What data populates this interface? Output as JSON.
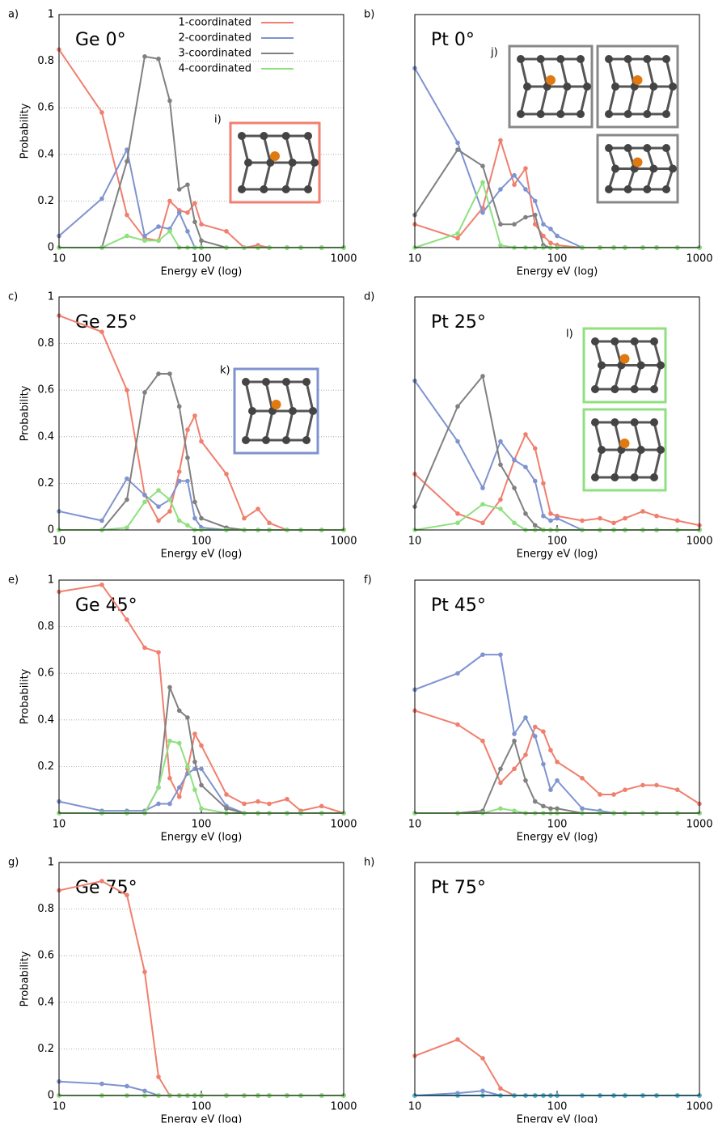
{
  "chart_data": [
    {
      "type": "line",
      "panel_label": "a)",
      "title": "Ge 0°",
      "xlabel": "Energy eV (log)",
      "ylabel": "Probability",
      "xscale": "log",
      "legend": "upper center",
      "inset_label": "i)",
      "x": [
        10,
        20,
        30,
        40,
        50,
        60,
        70,
        80,
        90,
        100,
        150,
        200,
        250,
        300,
        400,
        500,
        700,
        1000
      ],
      "xlim": [
        10,
        1000
      ],
      "xticks": [
        10,
        100,
        1000
      ],
      "ylim": [
        0,
        1
      ],
      "yticks": [
        0,
        0.2,
        0.4,
        0.6,
        0.8,
        1
      ],
      "grid": true,
      "series": [
        {
          "name": "1-coordinated",
          "color": "#f07f6e",
          "values": [
            0.85,
            0.58,
            0.14,
            0.04,
            0.03,
            0.2,
            0.16,
            0.15,
            0.19,
            0.1,
            0.07,
            0,
            0.01,
            0,
            0,
            0,
            0,
            0
          ]
        },
        {
          "name": "2-coordinated",
          "color": "#7f93cf",
          "values": [
            0.05,
            0.21,
            0.42,
            0.05,
            0.09,
            0.08,
            0.15,
            0.07,
            0,
            0,
            0,
            0,
            0,
            0,
            0,
            0,
            0,
            0
          ]
        },
        {
          "name": "3-coordinated",
          "color": "#808080",
          "values": [
            0,
            0,
            0.37,
            0.82,
            0.81,
            0.63,
            0.25,
            0.27,
            0.11,
            0.03,
            0,
            0,
            0,
            0,
            0,
            0,
            0,
            0
          ]
        },
        {
          "name": "4-coordinated",
          "color": "#90e080",
          "values": [
            0,
            0,
            0.05,
            0.03,
            0.03,
            0.07,
            0,
            0,
            0,
            0,
            0,
            0,
            0,
            0,
            0,
            0,
            0,
            0
          ]
        }
      ]
    },
    {
      "type": "line",
      "panel_label": "b)",
      "title": "Pt 0°",
      "xlabel": "Energy eV (log)",
      "xscale": "log",
      "inset_label": "j)",
      "x": [
        10,
        20,
        30,
        40,
        50,
        60,
        70,
        80,
        90,
        100,
        150,
        200,
        250,
        300,
        400,
        500,
        700,
        1000
      ],
      "xlim": [
        10,
        1000
      ],
      "xticks": [
        10,
        100,
        1000
      ],
      "ylim": [
        0,
        1
      ],
      "series": [
        {
          "name": "1-coordinated",
          "color": "#f07f6e",
          "values": [
            0.1,
            0.04,
            0.17,
            0.46,
            0.27,
            0.34,
            0.1,
            0.05,
            0.02,
            0.01,
            0,
            0,
            0,
            0,
            0,
            0,
            0,
            0
          ]
        },
        {
          "name": "2-coordinated",
          "color": "#7f93cf",
          "values": [
            0.77,
            0.45,
            0.15,
            0.25,
            0.31,
            0.25,
            0.2,
            0.1,
            0.08,
            0.05,
            0,
            0,
            0,
            0,
            0,
            0,
            0,
            0
          ]
        },
        {
          "name": "3-coordinated",
          "color": "#808080",
          "values": [
            0.14,
            0.42,
            0.35,
            0.1,
            0.1,
            0.13,
            0.14,
            0.01,
            0,
            0,
            0,
            0,
            0,
            0,
            0,
            0,
            0,
            0
          ]
        },
        {
          "name": "4-coordinated",
          "color": "#90e080",
          "values": [
            0,
            0.06,
            0.28,
            0.01,
            0,
            0,
            0,
            0,
            0,
            0,
            0,
            0,
            0,
            0,
            0,
            0,
            0,
            0
          ]
        }
      ]
    },
    {
      "type": "line",
      "panel_label": "c)",
      "title": "Ge 25°",
      "xlabel": "Energy eV (log)",
      "ylabel": "Probability",
      "xscale": "log",
      "inset_label": "k)",
      "x": [
        10,
        20,
        30,
        40,
        50,
        60,
        70,
        80,
        90,
        100,
        150,
        200,
        250,
        300,
        400,
        500,
        700,
        1000
      ],
      "xlim": [
        10,
        1000
      ],
      "xticks": [
        10,
        100,
        1000
      ],
      "ylim": [
        0,
        1
      ],
      "yticks": [
        0,
        0.2,
        0.4,
        0.6,
        0.8,
        1
      ],
      "grid": true,
      "series": [
        {
          "name": "1-coordinated",
          "color": "#f07f6e",
          "values": [
            0.92,
            0.85,
            0.6,
            0.15,
            0.04,
            0.08,
            0.25,
            0.43,
            0.49,
            0.38,
            0.24,
            0.05,
            0.09,
            0.03,
            0,
            0,
            0,
            0
          ]
        },
        {
          "name": "2-coordinated",
          "color": "#7f93cf",
          "values": [
            0.08,
            0.04,
            0.22,
            0.15,
            0.1,
            0.13,
            0.21,
            0.21,
            0.05,
            0.01,
            0,
            0,
            0,
            0,
            0,
            0,
            0,
            0
          ]
        },
        {
          "name": "3-coordinated",
          "color": "#808080",
          "values": [
            0,
            0,
            0.13,
            0.59,
            0.67,
            0.67,
            0.53,
            0.31,
            0.12,
            0.05,
            0.01,
            0,
            0,
            0,
            0,
            0,
            0,
            0
          ]
        },
        {
          "name": "4-coordinated",
          "color": "#90e080",
          "values": [
            0,
            0,
            0.01,
            0.12,
            0.17,
            0.13,
            0.04,
            0.02,
            0,
            0,
            0,
            0,
            0,
            0,
            0,
            0,
            0,
            0
          ]
        }
      ]
    },
    {
      "type": "line",
      "panel_label": "d)",
      "title": "Pt 25°",
      "xlabel": "Energy eV (log)",
      "xscale": "log",
      "inset_label": "l)",
      "x": [
        10,
        20,
        30,
        40,
        50,
        60,
        70,
        80,
        90,
        100,
        150,
        200,
        250,
        300,
        400,
        500,
        700,
        1000
      ],
      "xlim": [
        10,
        1000
      ],
      "xticks": [
        10,
        100,
        1000
      ],
      "ylim": [
        0,
        1
      ],
      "series": [
        {
          "name": "1-coordinated",
          "color": "#f07f6e",
          "values": [
            0.24,
            0.07,
            0.03,
            0.13,
            0.3,
            0.41,
            0.35,
            0.2,
            0.07,
            0.06,
            0.04,
            0.05,
            0.03,
            0.05,
            0.08,
            0.06,
            0.04,
            0.02
          ]
        },
        {
          "name": "2-coordinated",
          "color": "#7f93cf",
          "values": [
            0.64,
            0.38,
            0.18,
            0.38,
            0.3,
            0.27,
            0.21,
            0.06,
            0.04,
            0.05,
            0,
            0,
            0,
            0,
            0,
            0,
            0,
            0
          ]
        },
        {
          "name": "3-coordinated",
          "color": "#808080",
          "values": [
            0.1,
            0.53,
            0.66,
            0.28,
            0.18,
            0.07,
            0.02,
            0,
            0,
            0,
            0,
            0,
            0,
            0,
            0,
            0,
            0,
            0
          ]
        },
        {
          "name": "4-coordinated",
          "color": "#90e080",
          "values": [
            0,
            0.03,
            0.11,
            0.09,
            0.03,
            0,
            0,
            0,
            0,
            0,
            0,
            0,
            0,
            0,
            0,
            0,
            0,
            0
          ]
        }
      ]
    },
    {
      "type": "line",
      "panel_label": "e)",
      "title": "Ge 45°",
      "xlabel": "Energy eV (log)",
      "ylabel": "Probability",
      "xscale": "log",
      "x": [
        10,
        20,
        30,
        40,
        50,
        60,
        70,
        80,
        90,
        100,
        150,
        200,
        250,
        300,
        400,
        500,
        700,
        1000
      ],
      "xlim": [
        10,
        1000
      ],
      "xticks": [
        10,
        100,
        1000
      ],
      "ylim": [
        0,
        1
      ],
      "yticks": [
        0.2,
        0.4,
        0.6,
        0.8,
        1
      ],
      "grid": true,
      "series": [
        {
          "name": "1-coordinated",
          "color": "#f07f6e",
          "values": [
            0.95,
            0.98,
            0.83,
            0.71,
            0.69,
            0.15,
            0.07,
            0.19,
            0.34,
            0.29,
            0.08,
            0.04,
            0.05,
            0.04,
            0.06,
            0.01,
            0.03,
            0
          ]
        },
        {
          "name": "2-coordinated",
          "color": "#7f93cf",
          "values": [
            0.05,
            0.01,
            0.01,
            0.01,
            0.04,
            0.04,
            0.11,
            0.17,
            0.19,
            0.19,
            0.03,
            0,
            0,
            0,
            0,
            0,
            0,
            0
          ]
        },
        {
          "name": "3-coordinated",
          "color": "#808080",
          "values": [
            0,
            0,
            0,
            0,
            0.11,
            0.54,
            0.44,
            0.41,
            0.22,
            0.12,
            0.02,
            0,
            0,
            0,
            0,
            0,
            0,
            0
          ]
        },
        {
          "name": "4-coordinated",
          "color": "#90e080",
          "values": [
            0,
            0,
            0,
            0,
            0.11,
            0.31,
            0.3,
            0.2,
            0.1,
            0.02,
            0,
            0,
            0,
            0,
            0,
            0,
            0,
            0
          ]
        }
      ]
    },
    {
      "type": "line",
      "panel_label": "f)",
      "title": "Pt 45°",
      "xlabel": "Energy eV (log)",
      "xscale": "log",
      "x": [
        10,
        20,
        30,
        40,
        50,
        60,
        70,
        80,
        90,
        100,
        150,
        200,
        250,
        300,
        400,
        500,
        700,
        1000
      ],
      "xlim": [
        10,
        1000
      ],
      "xticks": [
        10,
        100,
        1000
      ],
      "ylim": [
        0,
        1
      ],
      "series": [
        {
          "name": "1-coordinated",
          "color": "#f07f6e",
          "values": [
            0.44,
            0.38,
            0.31,
            0.13,
            0.19,
            0.25,
            0.37,
            0.35,
            0.27,
            0.22,
            0.15,
            0.08,
            0.08,
            0.1,
            0.12,
            0.12,
            0.1,
            0.04
          ]
        },
        {
          "name": "2-coordinated",
          "color": "#7f93cf",
          "values": [
            0.53,
            0.6,
            0.68,
            0.68,
            0.34,
            0.41,
            0.33,
            0.21,
            0.1,
            0.14,
            0.02,
            0.01,
            0,
            0,
            0,
            0,
            0,
            0
          ]
        },
        {
          "name": "3-coordinated",
          "color": "#808080",
          "values": [
            0,
            0,
            0.01,
            0.19,
            0.31,
            0.14,
            0.05,
            0.03,
            0.02,
            0.02,
            0,
            0,
            0,
            0,
            0,
            0,
            0,
            0
          ]
        },
        {
          "name": "4-coordinated",
          "color": "#90e080",
          "values": [
            0,
            0,
            0,
            0.02,
            0.01,
            0,
            0,
            0,
            0,
            0,
            0,
            0,
            0,
            0,
            0,
            0,
            0,
            0
          ]
        }
      ]
    },
    {
      "type": "line",
      "panel_label": "g)",
      "title": "Ge 75°",
      "xlabel": "Energy eV (log)",
      "ylabel": "Probability",
      "xscale": "log",
      "x": [
        10,
        20,
        30,
        40,
        50,
        60,
        70,
        80,
        90,
        100,
        150,
        200,
        250,
        300,
        400,
        500,
        700,
        1000
      ],
      "xlim": [
        10,
        1000
      ],
      "xticks": [
        10,
        100,
        1000
      ],
      "ylim": [
        0,
        1
      ],
      "yticks": [
        0,
        0.2,
        0.4,
        0.6,
        0.8,
        1
      ],
      "grid": true,
      "series": [
        {
          "name": "1-coordinated",
          "color": "#f07f6e",
          "values": [
            0.88,
            0.92,
            0.86,
            0.53,
            0.08,
            0,
            0,
            0,
            0,
            0,
            0,
            0,
            0,
            0,
            0,
            0,
            0,
            0
          ]
        },
        {
          "name": "2-coordinated",
          "color": "#7f93cf",
          "values": [
            0.06,
            0.05,
            0.04,
            0.02,
            0,
            0,
            0,
            0,
            0,
            0,
            0,
            0,
            0,
            0,
            0,
            0,
            0,
            0
          ]
        },
        {
          "name": "3-coordinated",
          "color": "#808080",
          "values": [
            0,
            0,
            0,
            0,
            0,
            0,
            0,
            0,
            0,
            0,
            0,
            0,
            0,
            0,
            0,
            0,
            0,
            0
          ]
        },
        {
          "name": "4-coordinated",
          "color": "#90e080",
          "values": [
            0,
            0,
            0,
            0,
            0,
            0,
            0,
            0,
            0,
            0,
            0,
            0,
            0,
            0,
            0,
            0,
            0,
            0
          ]
        }
      ]
    },
    {
      "type": "line",
      "panel_label": "h)",
      "title": "Pt 75°",
      "xlabel": "Energy eV (log)",
      "xscale": "log",
      "x": [
        10,
        20,
        30,
        40,
        50,
        60,
        70,
        80,
        90,
        100,
        150,
        200,
        250,
        300,
        400,
        500,
        700,
        1000
      ],
      "xlim": [
        10,
        1000
      ],
      "xticks": [
        10,
        100,
        1000
      ],
      "ylim": [
        0,
        1
      ],
      "series": [
        {
          "name": "1-coordinated",
          "color": "#f07f6e",
          "values": [
            0.17,
            0.24,
            0.16,
            0.03,
            0,
            0,
            0,
            0,
            0,
            0,
            0,
            0,
            0,
            0,
            0,
            0,
            0,
            0
          ]
        },
        {
          "name": "2-coordinated",
          "color": "#7f93cf",
          "values": [
            0,
            0.01,
            0.02,
            0,
            0,
            0,
            0,
            0,
            0,
            0,
            0,
            0,
            0,
            0,
            0,
            0,
            0,
            0
          ]
        },
        {
          "name": "3-coordinated",
          "color": "#808080",
          "values": [
            0,
            0,
            0,
            0,
            0,
            0,
            0,
            0,
            0,
            0,
            0,
            0,
            0,
            0,
            0,
            0,
            0,
            0
          ]
        },
        {
          "name": "4-coordinated",
          "color": "#4fb7d6",
          "values": [
            0,
            0,
            0,
            0,
            0,
            0,
            0,
            0,
            0,
            0,
            0,
            0,
            0,
            0,
            0,
            0,
            0,
            0
          ]
        }
      ]
    }
  ]
}
